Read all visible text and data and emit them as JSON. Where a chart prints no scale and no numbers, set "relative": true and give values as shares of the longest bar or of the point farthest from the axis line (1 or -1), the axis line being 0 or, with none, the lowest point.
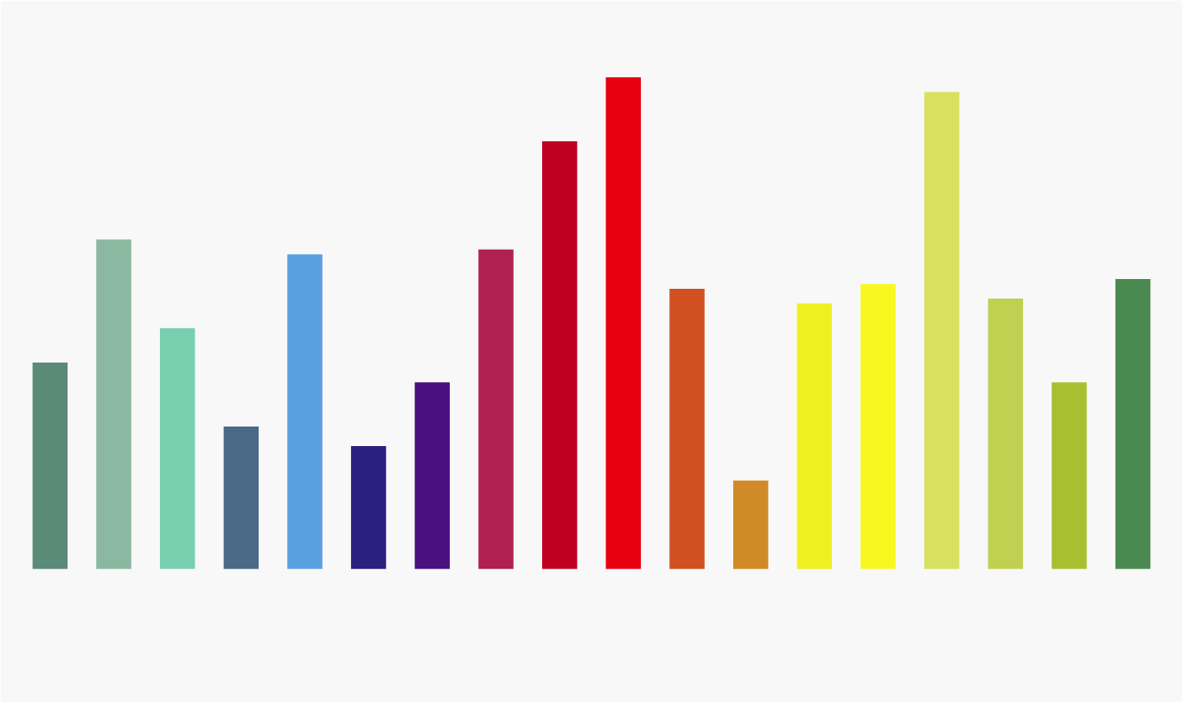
{
  "chart_data": {
    "type": "bar",
    "relative": true,
    "grid": false,
    "categories": [
      null,
      null,
      null,
      null,
      null,
      null,
      null,
      null,
      null,
      null,
      null,
      null,
      null,
      null,
      null,
      null,
      null,
      null
    ],
    "values": [
      0.42,
      0.67,
      0.49,
      0.29,
      0.64,
      0.25,
      0.38,
      0.65,
      0.87,
      1,
      0.57,
      0.18,
      0.54,
      0.58,
      0.97,
      0.55,
      0.38,
      0.59
    ],
    "colors": [
      "#5a8a78",
      "#8ab8a0",
      "#78d0b0",
      "#4a6a88",
      "#5aa0e0",
      "#2a2080",
      "#4a1080",
      "#b02050",
      "#c00020",
      "#e80010",
      "#d05020",
      "#d08a28",
      "#f0f020",
      "#f8f820",
      "#d8e060",
      "#c0d050",
      "#a8c030",
      "#4a8a50"
    ]
  }
}
